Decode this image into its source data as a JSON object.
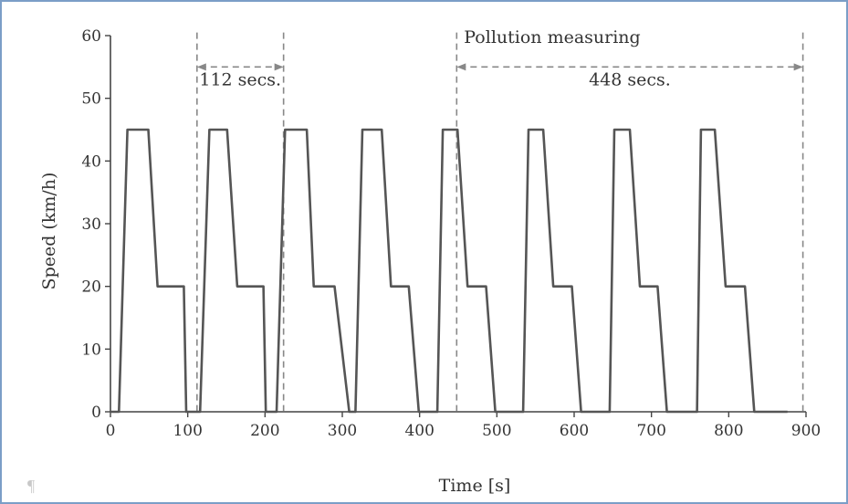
{
  "chart_data": {
    "type": "line",
    "xlabel": "Time [s]",
    "ylabel": "Speed (km/h)",
    "xlim": [
      0,
      900
    ],
    "ylim": [
      0,
      60
    ],
    "xticks": [
      0,
      100,
      200,
      300,
      400,
      500,
      600,
      700,
      800,
      900
    ],
    "yticks": [
      0,
      10,
      20,
      30,
      40,
      50,
      60
    ],
    "grid": false,
    "series": [
      {
        "color": "#555555",
        "x": [
          0,
          7,
          11,
          22,
          38,
          49,
          61,
          79,
          87,
          95,
          98,
          103,
          116,
          128,
          142,
          151,
          164,
          183,
          198,
          201,
          205,
          215,
          226,
          240,
          254,
          263,
          275,
          290,
          309,
          312,
          317,
          326,
          338,
          351,
          363,
          373,
          386,
          399,
          421,
          423,
          430,
          438,
          449,
          462,
          475,
          486,
          498,
          510,
          533,
          534,
          541,
          549,
          560,
          573,
          587,
          597,
          609,
          621,
          644,
          646,
          652,
          661,
          672,
          685,
          698,
          708,
          720,
          732,
          756,
          759,
          764,
          771,
          782,
          796,
          810,
          821,
          833,
          846,
          868,
          871,
          876
        ],
        "y": [
          0,
          0,
          0,
          45,
          45,
          45,
          20,
          20,
          20,
          20,
          0,
          0,
          0,
          45,
          45,
          45,
          20,
          20,
          20,
          0,
          0,
          0,
          45,
          45,
          45,
          20,
          20,
          20,
          0,
          0,
          0,
          45,
          45,
          45,
          20,
          20,
          20,
          0,
          0,
          0,
          45,
          45,
          45,
          20,
          20,
          20,
          0,
          0,
          0,
          0,
          45,
          45,
          45,
          20,
          20,
          20,
          0,
          0,
          0,
          0,
          45,
          45,
          45,
          20,
          20,
          20,
          0,
          0,
          0,
          0,
          45,
          45,
          45,
          20,
          20,
          20,
          0,
          0,
          0,
          0,
          0
        ]
      }
    ],
    "annotations": [
      {
        "text": "112 secs.",
        "x_start": 112,
        "x_end": 224,
        "y": 55,
        "line_top": 60.5
      },
      {
        "text": "448 secs.",
        "x_start": 448,
        "x_end": 896,
        "y": 55,
        "line_top": 60.5
      },
      {
        "text": "Pollution measuring",
        "x": 448,
        "y": 59.7
      }
    ]
  },
  "footer": {
    "pilcrow": "¶"
  },
  "colors": {
    "frame_border": "#7b9ec7",
    "line": "#555555",
    "dashed": "#888888",
    "text": "#333333"
  }
}
